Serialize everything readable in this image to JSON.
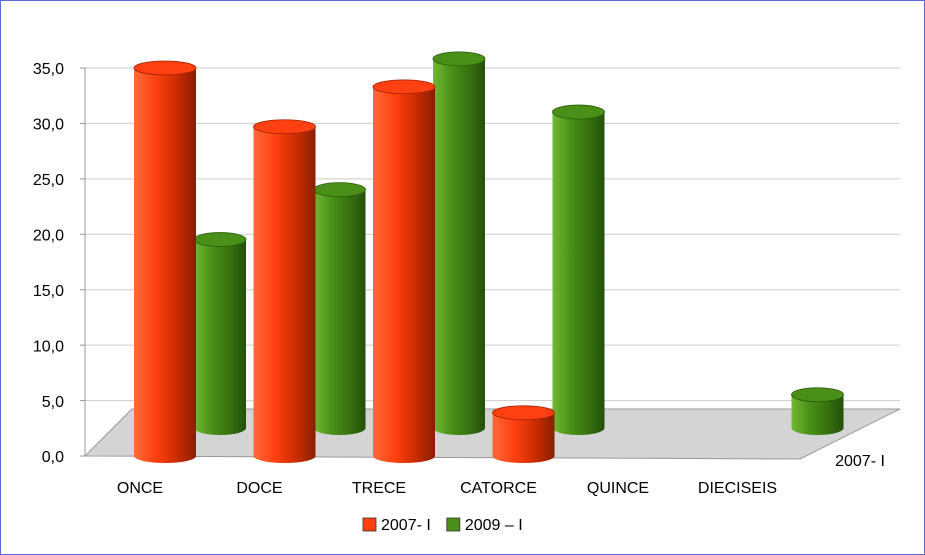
{
  "chart_data": {
    "type": "bar3d",
    "categories": [
      "ONCE",
      "DOCE",
      "TRECE",
      "CATORCE",
      "QUINCE",
      "DIECISEIS"
    ],
    "series": [
      {
        "name": "2007- I",
        "color": "#ff4010",
        "values": [
          35.0,
          29.7,
          33.3,
          3.9,
          null,
          null
        ]
      },
      {
        "name": "2009 – I",
        "color": "#4a9018",
        "values": [
          17.0,
          21.5,
          33.3,
          28.5,
          null,
          3.0
        ]
      }
    ],
    "ylim": [
      0,
      35
    ],
    "yticks": [
      {
        "value": 0,
        "label": "0,0"
      },
      {
        "value": 5,
        "label": "5,0"
      },
      {
        "value": 10,
        "label": "10,0"
      },
      {
        "value": 15,
        "label": "15,0"
      },
      {
        "value": 20,
        "label": "20,0"
      },
      {
        "value": 25,
        "label": "25,0"
      },
      {
        "value": 30,
        "label": "30,0"
      },
      {
        "value": 35,
        "label": "35,0"
      }
    ],
    "grid": true,
    "legend": "bottom"
  }
}
